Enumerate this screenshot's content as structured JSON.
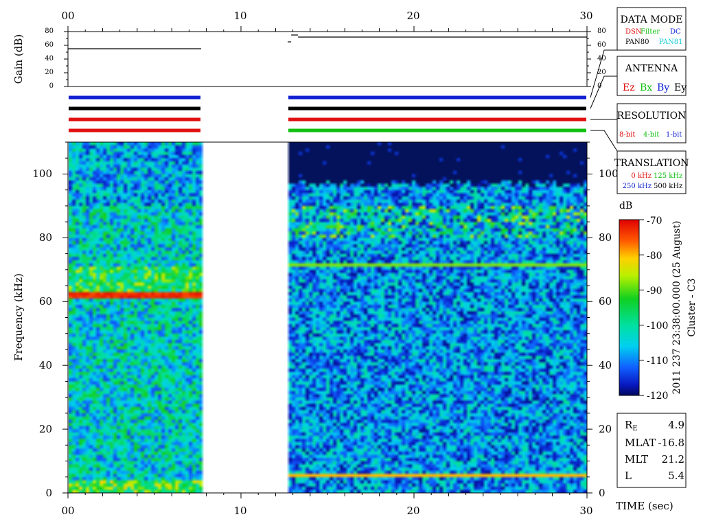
{
  "colors": {
    "background": "#ffffff",
    "spectrogram_background": "#04125c",
    "antenna_ez": "#e01010",
    "antenna_bx": "#10c010",
    "antenna_by": "#1020d0",
    "antenna_ey": "#000000",
    "res_8bit": "#e01010",
    "res_4bit": "#10c010",
    "res_1bit": "#1020d0",
    "trans_0": "#e01010",
    "trans_125": "#10c010",
    "trans_250": "#1020d0",
    "trans_500": "#000000"
  },
  "chart_data": {
    "type": "heatmap",
    "xlabel": "TIME (sec)",
    "x_ticks": [
      "00",
      "10",
      "20",
      "30"
    ],
    "xlim": [
      0,
      30
    ],
    "ylabel": "Frequency (kHz)",
    "ylim": [
      0,
      110
    ],
    "y_ticks": [
      "0",
      "20",
      "40",
      "60",
      "80",
      "100"
    ],
    "gain_panel": {
      "ylabel": "Gain (dB)",
      "ylim": [
        0,
        80
      ],
      "y_ticks": [
        "0",
        "20",
        "40",
        "60",
        "80"
      ],
      "segments": [
        {
          "x": [
            0,
            7.7
          ],
          "gain_db": 55
        },
        {
          "x": [
            12.7,
            12.9
          ],
          "gain_db": 65
        },
        {
          "x": [
            12.9,
            13.3
          ],
          "gain_db": 75
        },
        {
          "x": [
            13.3,
            30
          ],
          "gain_db": 72
        }
      ]
    },
    "data_gaps": [
      [
        7.7,
        12.7
      ]
    ],
    "mode_bars": [
      {
        "row": "data_mode",
        "segments": [
          {
            "x": [
              0,
              7.7
            ],
            "color": "#1020d0"
          },
          {
            "x": [
              12.7,
              30
            ],
            "color": "#1020d0"
          }
        ]
      },
      {
        "row": "antenna",
        "segments": [
          {
            "x": [
              0,
              7.7
            ],
            "color": "#000000"
          },
          {
            "x": [
              12.7,
              30
            ],
            "color": "#000000"
          }
        ]
      },
      {
        "row": "resolution",
        "segments": [
          {
            "x": [
              0,
              7.7
            ],
            "color": "#e01010"
          },
          {
            "x": [
              12.7,
              30
            ],
            "color": "#e01010"
          }
        ]
      },
      {
        "row": "translation",
        "segments": [
          {
            "x": [
              0,
              7.7
            ],
            "color": "#e01010"
          },
          {
            "x": [
              12.7,
              30
            ],
            "color": "#10c010"
          }
        ]
      }
    ],
    "colorbar": {
      "unit": "dB",
      "range": [
        -120,
        -70
      ],
      "ticks": [
        "-70",
        "-80",
        "-90",
        "-100",
        "-110",
        "-120"
      ]
    },
    "features": [
      {
        "segment": [
          0,
          7.7
        ],
        "type": "band",
        "freq_khz": [
          60.5,
          63.5
        ],
        "level_db": -72
      },
      {
        "segment": [
          0,
          7.7
        ],
        "type": "band",
        "freq_khz": [
          63.5,
          71
        ],
        "level_db": -92
      },
      {
        "segment": [
          0,
          7.7
        ],
        "type": "band",
        "freq_khz": [
          0,
          4
        ],
        "level_db": -95
      },
      {
        "segment": [
          12.7,
          30
        ],
        "type": "line",
        "freq_khz": 71.5,
        "level_db": -88
      },
      {
        "segment": [
          12.7,
          30
        ],
        "type": "line",
        "freq_khz": 5.5,
        "level_db": -80
      },
      {
        "segment": [
          12.7,
          30
        ],
        "type": "emission",
        "freq_khz": [
          80,
          90
        ],
        "level_db": -95
      }
    ]
  },
  "legend": {
    "data_mode": {
      "title": "DATA MODE",
      "dsn": "DSN",
      "filter": "Filter",
      "dc": "DC",
      "pan80": "PAN80",
      "pan81": "PAN81"
    },
    "antenna": {
      "title": "ANTENNA",
      "ez": "Ez",
      "bx": "Bx",
      "by": "By",
      "ey": "Ey"
    },
    "resolution": {
      "title": "RESOLUTION",
      "b8": "8-bit",
      "b4": "4-bit",
      "b1": "1-bit"
    },
    "translation": {
      "title": "TRANSLATION",
      "k0": "0 kHz",
      "k125": "125 kHz",
      "k250": "250 kHz",
      "k500": "500 kHz"
    }
  },
  "side_title": {
    "line1": "2011 237 23:38:00.000 (25 August)",
    "line2": "Cluster - C3"
  },
  "ephemeris": {
    "re_main": "R",
    "re_sub": "E",
    "re_value": "4.9",
    "mlat_label": "MLAT",
    "mlat_value": "-16.8",
    "mlt_label": "MLT",
    "mlt_value": "21.2",
    "l_label": "L",
    "l_value": "5.4"
  }
}
